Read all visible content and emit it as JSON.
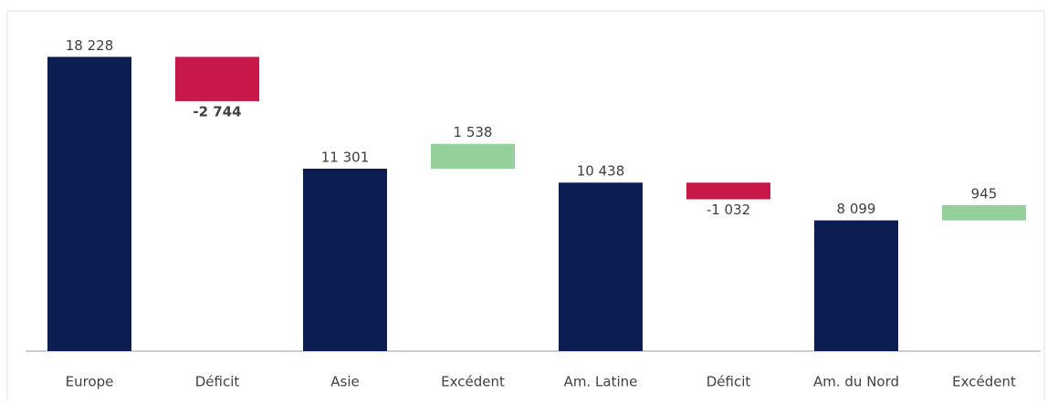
{
  "chart_data": {
    "type": "waterfall",
    "categories": [
      "Europe",
      "Déficit",
      "Asie",
      "Excédent",
      "Am. Latine",
      "Déficit",
      "Am. du Nord",
      "Excédent"
    ],
    "values": [
      18228,
      -2744,
      11301,
      1538,
      10438,
      -1032,
      8099,
      945
    ],
    "value_labels": [
      "18 228",
      "-2 744",
      "11 301",
      "1 538",
      "10 438",
      "-1 032",
      "8 099",
      "945"
    ],
    "colors": [
      "#0b1d51",
      "#c8184a",
      "#0b1d51",
      "#93d09a",
      "#0b1d51",
      "#c8184a",
      "#0b1d51",
      "#93d09a"
    ],
    "ylim": [
      0,
      20000
    ]
  }
}
